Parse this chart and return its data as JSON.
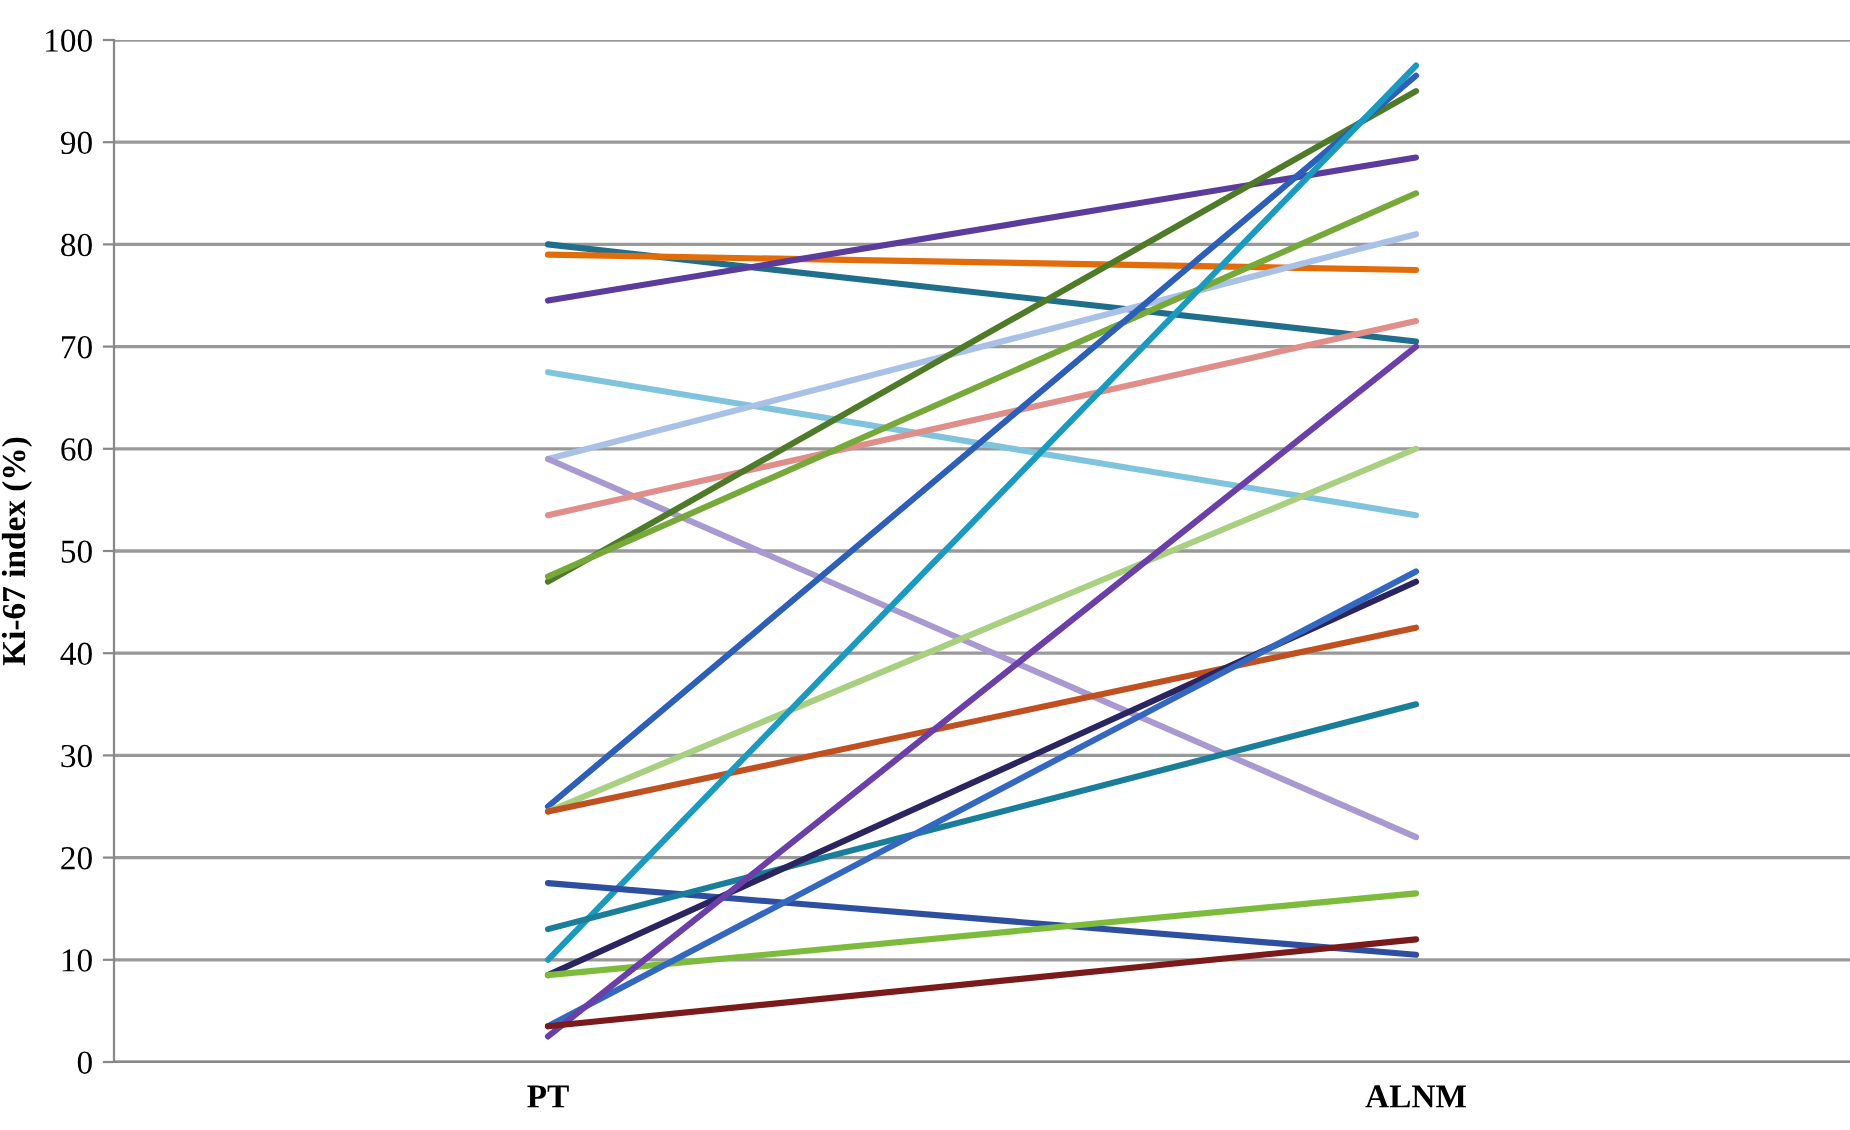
{
  "chart_data": {
    "type": "line",
    "ylabel": "Ki-67 index (%)",
    "categories": [
      "PT",
      "ALNM"
    ],
    "ylim": [
      0,
      100
    ],
    "yticks": [
      0,
      10,
      20,
      30,
      40,
      50,
      60,
      70,
      80,
      90,
      100
    ],
    "grid": "y",
    "marker": "none",
    "line_style": "solid",
    "series": [
      {
        "color": "#1f6e8c",
        "values": [
          80,
          70.5
        ]
      },
      {
        "color": "#e36c0a",
        "values": [
          79,
          77.5
        ]
      },
      {
        "color": "#5b3b9b",
        "values": [
          74.5,
          88.5
        ]
      },
      {
        "color": "#7fc4dc",
        "values": [
          67.5,
          53.5
        ]
      },
      {
        "color": "#a9c1e6",
        "values": [
          59,
          81
        ]
      },
      {
        "color": "#a89ad0",
        "values": [
          59,
          22
        ]
      },
      {
        "color": "#e08e8a",
        "values": [
          53.5,
          72.5
        ]
      },
      {
        "color": "#4f7a28",
        "values": [
          47,
          95
        ]
      },
      {
        "color": "#77a83a",
        "values": [
          47.5,
          85
        ]
      },
      {
        "color": "#2d5fb8",
        "values": [
          25,
          96.5
        ]
      },
      {
        "color": "#a8d080",
        "values": [
          24.5,
          60
        ]
      },
      {
        "color": "#c0501f",
        "values": [
          24.5,
          42.5
        ]
      },
      {
        "color": "#1b9ac0",
        "values": [
          10,
          97.5
        ]
      },
      {
        "color": "#2e4fa0",
        "values": [
          17.5,
          10.5
        ]
      },
      {
        "color": "#1a7e9a",
        "values": [
          13,
          35
        ]
      },
      {
        "color": "#2a2560",
        "values": [
          8.5,
          47
        ]
      },
      {
        "color": "#7dbb3c",
        "values": [
          8.5,
          16.5
        ]
      },
      {
        "color": "#3468c0",
        "values": [
          3.5,
          48
        ]
      },
      {
        "color": "#6b3fa8",
        "values": [
          2.5,
          70
        ]
      },
      {
        "color": "#7b1a1a",
        "values": [
          3.5,
          12
        ]
      }
    ]
  }
}
